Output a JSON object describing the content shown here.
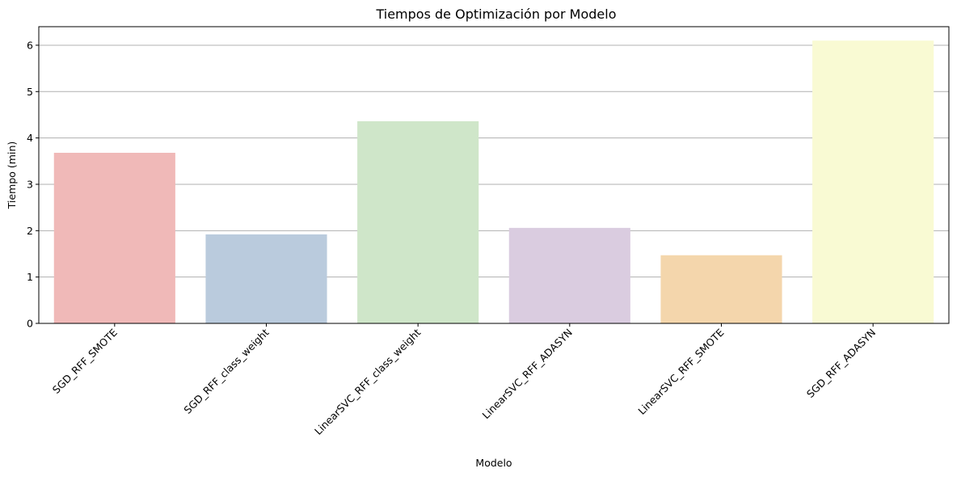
{
  "chart_data": {
    "type": "bar",
    "title": "Tiempos de Optimización por Modelo",
    "xlabel": "Modelo",
    "ylabel": "Tiempo (min)",
    "categories": [
      "SGD_RFF_SMOTE",
      "SGD_RFF_class_weight",
      "LinearSVC_RFF_class_weight",
      "LinearSVC_RFF_ADASYN",
      "LinearSVC_RFF_SMOTE",
      "SGD_RFF_ADASYN"
    ],
    "values": [
      3.68,
      1.92,
      4.36,
      2.06,
      1.47,
      6.1
    ],
    "colors": [
      "#f0b9b8",
      "#bacbdd",
      "#cfe6c9",
      "#dacce0",
      "#f4d6ac",
      "#f9fad3"
    ],
    "ylim": [
      0,
      6.4
    ],
    "yticks": [
      0,
      1,
      2,
      3,
      4,
      5,
      6
    ],
    "grid": "y",
    "legend": "none"
  }
}
